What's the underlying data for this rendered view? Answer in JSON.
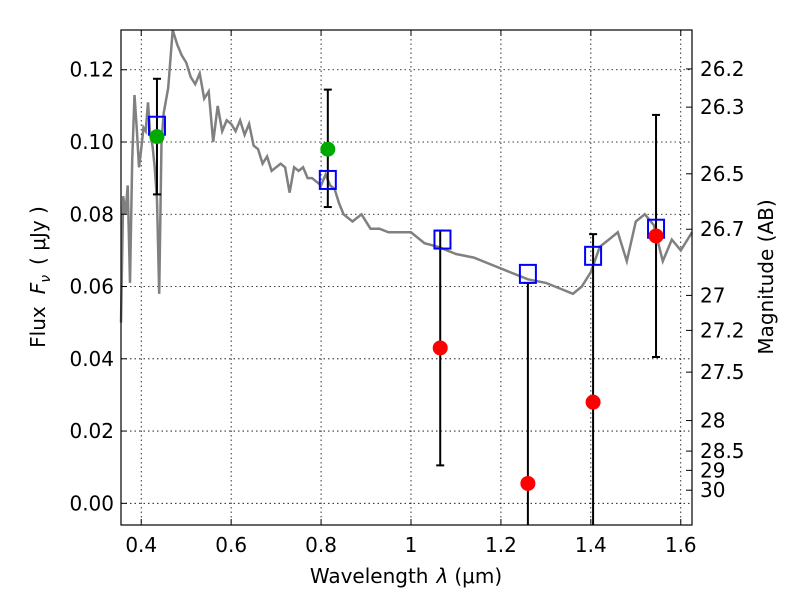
{
  "chart_data": {
    "type": "scatter",
    "xlabel_prefix": "Wavelength",
    "xlabel_symbol": "λ",
    "xlabel_unit": "(μm)",
    "ylabel_prefix": "Flux",
    "ylabel_symbol": "F",
    "ylabel_subscript": "ν",
    "ylabel_unit": "( μJy )",
    "y2label": "Magnitude (AB)",
    "xlim": [
      0.355,
      1.625
    ],
    "ylim": [
      -0.006,
      0.131
    ],
    "x_ticks": [
      0.4,
      0.6,
      0.8,
      1.0,
      1.2,
      1.4,
      1.6
    ],
    "x_tick_labels": [
      "0.4",
      "0.6",
      "0.8",
      "1",
      "1.2",
      "1.4",
      "1.6"
    ],
    "y_ticks": [
      0.0,
      0.02,
      0.04,
      0.06,
      0.08,
      0.1,
      0.12
    ],
    "y_tick_labels": [
      "0.00",
      "0.02",
      "0.04",
      "0.06",
      "0.08",
      "0.10",
      "0.12"
    ],
    "mag_ticks": [
      {
        "mag": 26.2,
        "label": "26.2"
      },
      {
        "mag": 26.3,
        "label": "26.3"
      },
      {
        "mag": 26.5,
        "label": "26.5"
      },
      {
        "mag": 26.7,
        "label": "26.7"
      },
      {
        "mag": 27.0,
        "label": "27"
      },
      {
        "mag": 27.2,
        "label": "27.2"
      },
      {
        "mag": 27.5,
        "label": "27.5"
      },
      {
        "mag": 28.0,
        "label": "28"
      },
      {
        "mag": 28.5,
        "label": "28.5"
      },
      {
        "mag": 29.0,
        "label": "29"
      },
      {
        "mag": 30.0,
        "label": "30"
      }
    ],
    "grid": true,
    "colors": {
      "sed_line": "#808080",
      "detection": "#00aa00",
      "non_detection": "#ff0000",
      "model_box": "#0000ff",
      "error_bar": "#000000"
    },
    "sed_template": {
      "x": [
        0.355,
        0.36,
        0.365,
        0.37,
        0.375,
        0.38,
        0.385,
        0.39,
        0.395,
        0.4,
        0.405,
        0.41,
        0.415,
        0.42,
        0.425,
        0.43,
        0.435,
        0.44,
        0.445,
        0.45,
        0.46,
        0.47,
        0.48,
        0.49,
        0.5,
        0.51,
        0.52,
        0.53,
        0.54,
        0.55,
        0.56,
        0.57,
        0.58,
        0.59,
        0.6,
        0.61,
        0.62,
        0.63,
        0.64,
        0.65,
        0.66,
        0.67,
        0.68,
        0.69,
        0.7,
        0.71,
        0.72,
        0.73,
        0.74,
        0.75,
        0.76,
        0.77,
        0.78,
        0.79,
        0.8,
        0.81,
        0.82,
        0.83,
        0.84,
        0.85,
        0.87,
        0.89,
        0.91,
        0.93,
        0.95,
        0.97,
        1.0,
        1.03,
        1.06,
        1.1,
        1.14,
        1.18,
        1.22,
        1.26,
        1.3,
        1.34,
        1.36,
        1.38,
        1.4,
        1.42,
        1.44,
        1.46,
        1.48,
        1.5,
        1.52,
        1.54,
        1.56,
        1.58,
        1.6,
        1.625
      ],
      "y": [
        0.05,
        0.085,
        0.08,
        0.088,
        0.061,
        0.095,
        0.113,
        0.104,
        0.093,
        0.098,
        0.104,
        0.103,
        0.111,
        0.102,
        0.099,
        0.093,
        0.084,
        0.058,
        0.1,
        0.108,
        0.115,
        0.135,
        0.127,
        0.124,
        0.122,
        0.118,
        0.116,
        0.119,
        0.112,
        0.114,
        0.1,
        0.11,
        0.103,
        0.106,
        0.105,
        0.103,
        0.106,
        0.102,
        0.105,
        0.099,
        0.098,
        0.094,
        0.096,
        0.092,
        0.093,
        0.094,
        0.093,
        0.086,
        0.093,
        0.092,
        0.093,
        0.09,
        0.09,
        0.089,
        0.088,
        0.091,
        0.088,
        0.087,
        0.083,
        0.08,
        0.078,
        0.08,
        0.076,
        0.076,
        0.075,
        0.075,
        0.075,
        0.072,
        0.071,
        0.069,
        0.068,
        0.066,
        0.064,
        0.062,
        0.061,
        0.059,
        0.058,
        0.06,
        0.064,
        0.071,
        0.073,
        0.075,
        0.067,
        0.078,
        0.08,
        0.077,
        0.067,
        0.073,
        0.07,
        0.075
      ]
    },
    "photometry": [
      {
        "x": 0.435,
        "y": 0.1015,
        "err_low": 0.0855,
        "err_high": 0.1175,
        "color": "#00aa00"
      },
      {
        "x": 0.815,
        "y": 0.098,
        "err_low": 0.082,
        "err_high": 0.1145,
        "color": "#00aa00"
      },
      {
        "x": 1.065,
        "y": 0.043,
        "err_low": 0.0105,
        "err_high": 0.0755,
        "color": "#ff0000"
      },
      {
        "x": 1.26,
        "y": 0.0055,
        "err_low": -0.006,
        "err_high": 0.061,
        "color": "#ff0000"
      },
      {
        "x": 1.405,
        "y": 0.028,
        "err_low": -0.006,
        "err_high": 0.0745,
        "color": "#ff0000"
      },
      {
        "x": 1.545,
        "y": 0.074,
        "err_low": 0.0405,
        "err_high": 0.1075,
        "color": "#ff0000"
      }
    ],
    "model_points": [
      {
        "x": 0.435,
        "y": 0.1045
      },
      {
        "x": 0.815,
        "y": 0.0895
      },
      {
        "x": 1.07,
        "y": 0.073
      },
      {
        "x": 1.26,
        "y": 0.0635
      },
      {
        "x": 1.405,
        "y": 0.0685
      },
      {
        "x": 1.545,
        "y": 0.076
      }
    ]
  }
}
